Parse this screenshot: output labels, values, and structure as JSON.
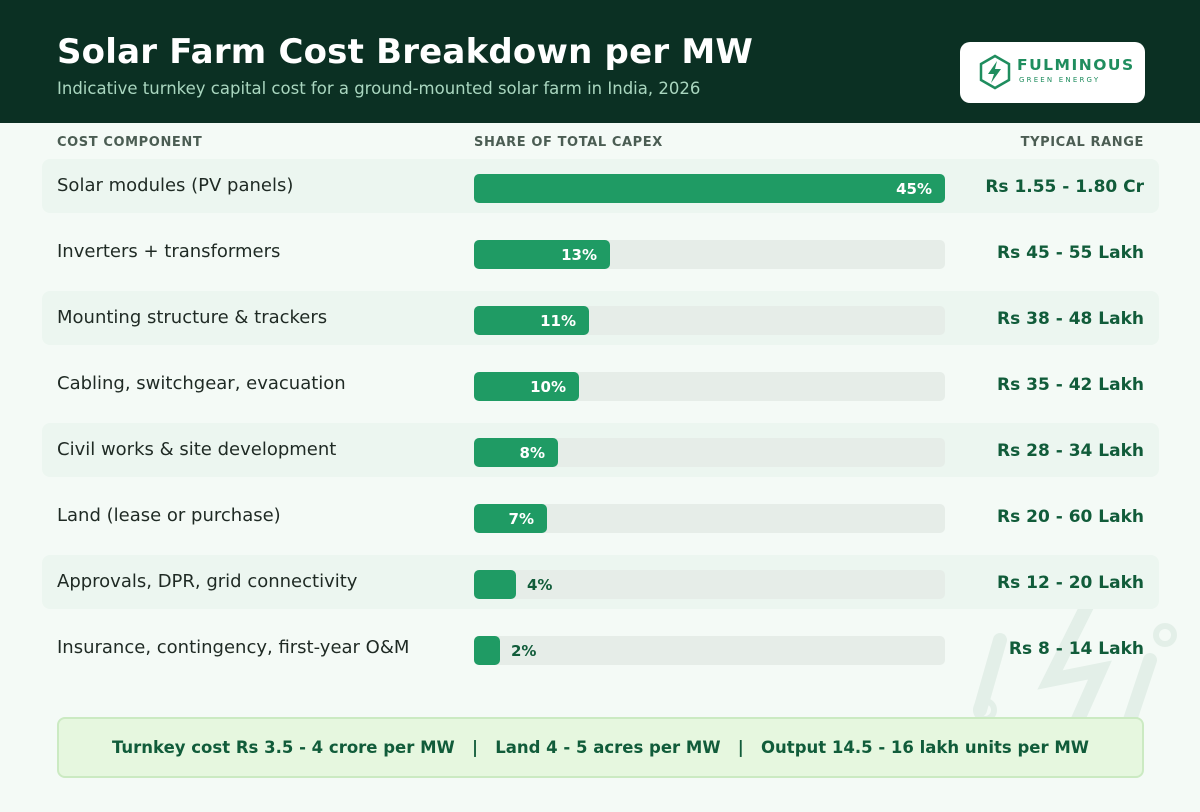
{
  "header": {
    "title": "Solar Farm Cost Breakdown per MW",
    "subtitle": "Indicative turnkey capital cost for a ground-mounted solar farm in India, 2026"
  },
  "logo": {
    "name": "FULMINOUS",
    "tagline": "GREEN ENERGY"
  },
  "columns": {
    "component": "COST COMPONENT",
    "share": "SHARE OF TOTAL CAPEX",
    "range": "TYPICAL RANGE"
  },
  "colors": {
    "header_bg": "#0b3023",
    "bar_fill": "#1f9b64",
    "bar_track": "#e6ede8",
    "range_text": "#115c3a",
    "footer_bg": "#e6f7df"
  },
  "chart_data": {
    "type": "bar",
    "orientation": "horizontal",
    "title": "Solar Farm Cost Breakdown per MW",
    "xlabel": "SHARE OF TOTAL CAPEX",
    "unit": "%",
    "xlim": [
      0,
      45
    ],
    "categories": [
      "Solar modules (PV panels)",
      "Inverters + transformers",
      "Mounting structure & trackers",
      "Cabling, switchgear, evacuation",
      "Civil works & site development",
      "Land (lease or purchase)",
      "Approvals, DPR, grid connectivity",
      "Insurance, contingency, first-year O&M"
    ],
    "values": [
      45,
      13,
      11,
      10,
      8,
      7,
      4,
      2
    ],
    "value_labels": [
      "45%",
      "13%",
      "11%",
      "10%",
      "8%",
      "7%",
      "4%",
      "2%"
    ],
    "ranges": [
      "Rs 1.55 - 1.80 Cr",
      "Rs 45 - 55 Lakh",
      "Rs 38 - 48 Lakh",
      "Rs 35 - 42 Lakh",
      "Rs 28 - 34 Lakh",
      "Rs 20 - 60 Lakh",
      "Rs 12 - 20 Lakh",
      "Rs 8 - 14 Lakh"
    ]
  },
  "footer": {
    "summary": "Turnkey cost Rs 3.5 - 4 crore per MW   |   Land 4 - 5 acres per MW   |   Output 14.5 - 16 lakh units per MW"
  }
}
